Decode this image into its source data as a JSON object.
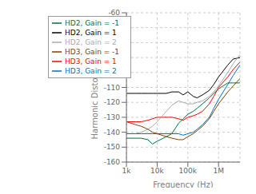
{
  "chart_data": {
    "type": "line",
    "x_label": "Frequency (Hz)",
    "y_label": "Harmonic Distortion (dBc)",
    "log": "x",
    "grid": true,
    "legend": "upper left",
    "xlim": [
      1000,
      5000000
    ],
    "xticks": [
      {
        "value": 1000,
        "label": "1k"
      },
      {
        "value": 10000,
        "label": "10k"
      },
      {
        "value": 100000,
        "label": "100k"
      },
      {
        "value": 1000000,
        "label": "1M"
      }
    ],
    "ylim": [
      -160,
      -60
    ],
    "yticks": [
      -160,
      -150,
      -140,
      -130,
      -120,
      -110,
      -100,
      -90,
      -80,
      -70,
      -60
    ],
    "x": [
      1000,
      2000,
      3000,
      5000,
      7000,
      10000,
      20000,
      30000,
      50000,
      70000,
      100000,
      150000,
      200000,
      300000,
      500000,
      700000,
      1000000,
      2000000,
      3000000,
      5000000
    ],
    "series": [
      {
        "name": "HD2, Gain = 1",
        "color": "#000000",
        "values": [
          -114,
          -114,
          -114,
          -114,
          -114,
          -114,
          -114,
          -113,
          -113,
          -115,
          -113,
          -116,
          -117,
          -115,
          -112,
          -108,
          -103,
          -95,
          -91,
          -90
        ]
      },
      {
        "name": "HD3, Gain = 1",
        "color": "#ff0000",
        "values": [
          -133,
          -133,
          -133,
          -132,
          -131,
          -130,
          -130,
          -130,
          -131,
          -132,
          -130,
          -129,
          -128,
          -126,
          -121,
          -116,
          -110,
          -103,
          -98,
          -93
        ]
      },
      {
        "name": "HD2, Gain = 2",
        "color": "#aaaaaa",
        "values": [
          -141,
          -141,
          -140,
          -138,
          -136,
          -133,
          -126,
          -122,
          -119,
          -120,
          -121,
          -121,
          -120,
          -119,
          -116,
          -113,
          -109,
          -100,
          -94,
          -88
        ]
      },
      {
        "name": "HD3, Gain = 2",
        "color": "#0070c0",
        "values": [
          -141,
          -141,
          -141,
          -141,
          -141,
          -141,
          -141,
          -141,
          -141,
          -142,
          -141,
          -140,
          -138,
          -135,
          -130,
          -124,
          -118,
          -108,
          -102,
          -95
        ]
      },
      {
        "name": "HD2, Gain = -1",
        "color": "#007040",
        "values": [
          -144,
          -144,
          -144,
          -145,
          -148,
          -146,
          -143,
          -141,
          -134,
          -131,
          -128,
          -126,
          -124,
          -121,
          -117,
          -114,
          -111,
          -107,
          -107,
          -107
        ]
      },
      {
        "name": "HD3, Gain = -1",
        "color": "#804000",
        "values": [
          -133,
          -135,
          -136,
          -138,
          -140,
          -141,
          -143,
          -144,
          -145,
          -145,
          -143,
          -141,
          -139,
          -136,
          -131,
          -126,
          -121,
          -113,
          -109,
          -104
        ]
      }
    ]
  }
}
